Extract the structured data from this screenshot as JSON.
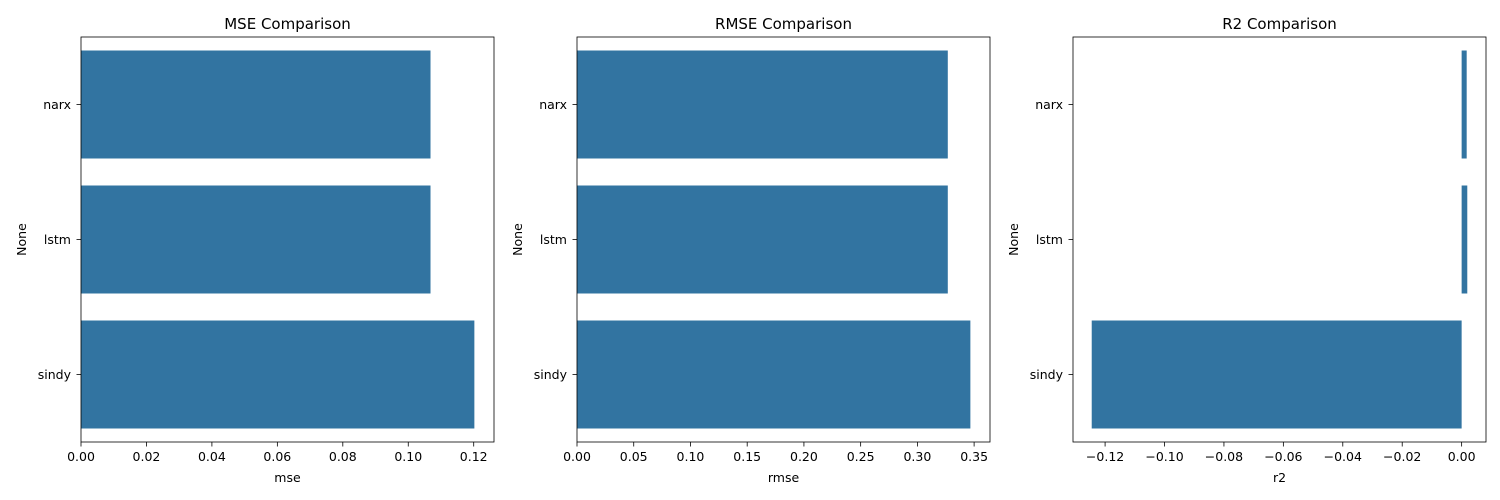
{
  "chart_data": [
    {
      "type": "bar",
      "orientation": "horizontal",
      "title": "MSE Comparison",
      "xlabel": "mse",
      "ylabel": "None",
      "categories": [
        "narx",
        "lstm",
        "sindy"
      ],
      "values": [
        0.1068,
        0.1068,
        0.1202
      ],
      "xlim": [
        0,
        0.1262
      ],
      "xticks": [
        0,
        0.02,
        0.04,
        0.06,
        0.08,
        0.1,
        0.12
      ],
      "xtick_labels": [
        "0.00",
        "0.02",
        "0.04",
        "0.06",
        "0.08",
        "0.10",
        "0.12"
      ],
      "grid": false,
      "bar_color": "#3274a1"
    },
    {
      "type": "bar",
      "orientation": "horizontal",
      "title": "RMSE Comparison",
      "xlabel": "rmse",
      "ylabel": "None",
      "categories": [
        "narx",
        "lstm",
        "sindy"
      ],
      "values": [
        0.3268,
        0.3268,
        0.3467
      ],
      "xlim": [
        0,
        0.364
      ],
      "xticks": [
        0,
        0.05,
        0.1,
        0.15,
        0.2,
        0.25,
        0.3,
        0.35
      ],
      "xtick_labels": [
        "0.00",
        "0.05",
        "0.10",
        "0.15",
        "0.20",
        "0.25",
        "0.30",
        "0.35"
      ],
      "grid": false,
      "bar_color": "#3274a1"
    },
    {
      "type": "bar",
      "orientation": "horizontal",
      "title": "R2 Comparison",
      "xlabel": "r2",
      "ylabel": "None",
      "categories": [
        "narx",
        "lstm",
        "sindy"
      ],
      "values": [
        0.0017,
        0.0019,
        -0.1245
      ],
      "xlim": [
        -0.1308,
        0.0082
      ],
      "xticks": [
        -0.12,
        -0.1,
        -0.08,
        -0.06,
        -0.04,
        -0.02,
        0.0
      ],
      "xtick_labels": [
        "−0.12",
        "−0.10",
        "−0.08",
        "−0.06",
        "−0.04",
        "−0.02",
        "0.00"
      ],
      "grid": false,
      "bar_color": "#3274a1"
    }
  ]
}
